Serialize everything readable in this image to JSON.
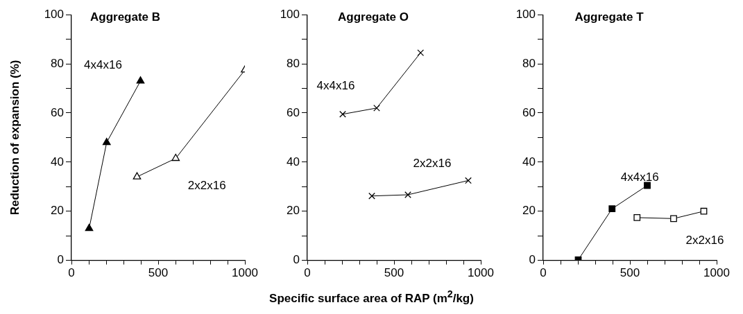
{
  "chart_data": [
    {
      "type": "line",
      "title": "Aggregate B",
      "ylabel": "Reduction of expansion (%)",
      "xlim": [
        0,
        1000
      ],
      "xticks": [
        0,
        {
          "value": 100,
          "label": null
        },
        {
          "value": 200,
          "label": null
        },
        {
          "value": 300,
          "label": null
        },
        {
          "value": 400,
          "label": null
        },
        500,
        {
          "value": 600,
          "label": null
        },
        {
          "value": 700,
          "label": null
        },
        {
          "value": 800,
          "label": null
        },
        {
          "value": 900,
          "label": null
        },
        1000
      ],
      "ylim": [
        0,
        100
      ],
      "yticks": [
        0,
        {
          "value": 10,
          "label": null
        },
        20,
        {
          "value": 30,
          "label": null
        },
        40,
        {
          "value": 50,
          "label": null
        },
        60,
        {
          "value": 70,
          "label": null
        },
        80,
        {
          "value": 90,
          "label": null
        },
        100
      ],
      "grid": false,
      "legend": false,
      "marker": "triangle",
      "line_style": "solid",
      "series": [
        {
          "name": "4x4x16",
          "color": "#000000",
          "x": [
            102,
            203,
            398
          ],
          "values": [
            13,
            48,
            73
          ]
        },
        {
          "name": "2x2x16",
          "color": "#000000",
          "x": [
            378,
            601,
            1000
          ],
          "values": [
            34,
            41.5,
            77.5
          ]
        }
      ]
    },
    {
      "type": "line",
      "title": "Aggregate O",
      "xlabel": "Specific surface area of RAP (m$^{2}$/kg)",
      "xlim": [
        0,
        1000
      ],
      "xticks": [
        0,
        {
          "value": 100,
          "label": null
        },
        {
          "value": 200,
          "label": null
        },
        {
          "value": 300,
          "label": null
        },
        {
          "value": 400,
          "label": null
        },
        500,
        {
          "value": 600,
          "label": null
        },
        {
          "value": 700,
          "label": null
        },
        {
          "value": 800,
          "label": null
        },
        {
          "value": 900,
          "label": null
        },
        1000
      ],
      "ylim": [
        0,
        100
      ],
      "yticks": [
        0,
        {
          "value": 10,
          "label": null
        },
        20,
        {
          "value": 30,
          "label": null
        },
        40,
        {
          "value": 50,
          "label": null
        },
        60,
        {
          "value": 70,
          "label": null
        },
        80,
        {
          "value": 90,
          "label": null
        },
        100
      ],
      "grid": false,
      "legend": false,
      "marker": "cross",
      "line_style": "solid",
      "series": [
        {
          "name": "4x4x16",
          "color": "#000000",
          "x": [
            204,
            400,
            653
          ],
          "values": [
            59.5,
            62,
            84.5
          ]
        },
        {
          "name": "2x2x16",
          "color": "#000000",
          "x": [
            372,
            580,
            928
          ],
          "values": [
            26.2,
            26.7,
            32.5
          ]
        }
      ]
    },
    {
      "type": "line",
      "title": "Aggregate T",
      "xlim": [
        0,
        1000
      ],
      "xticks": [
        0,
        {
          "value": 100,
          "label": null
        },
        {
          "value": 200,
          "label": null
        },
        {
          "value": 300,
          "label": null
        },
        {
          "value": 400,
          "label": null
        },
        500,
        {
          "value": 600,
          "label": null
        },
        {
          "value": 700,
          "label": null
        },
        {
          "value": 800,
          "label": null
        },
        {
          "value": 900,
          "label": null
        },
        1000
      ],
      "ylim": [
        0,
        100
      ],
      "yticks": [
        0,
        {
          "value": 10,
          "label": null
        },
        20,
        {
          "value": 30,
          "label": null
        },
        40,
        {
          "value": 50,
          "label": null
        },
        60,
        {
          "value": 70,
          "label": null
        },
        80,
        {
          "value": 90,
          "label": null
        },
        100
      ],
      "grid": false,
      "legend": false,
      "marker": "square",
      "line_style": "solid",
      "series": [
        {
          "name": "4x4x16",
          "color": "#000000",
          "x": [
            202,
            397,
            600
          ],
          "values": [
            0.2,
            21,
            30.5
          ]
        },
        {
          "name": "2x2x16",
          "color": "#000000",
          "x": [
            541,
            752,
            926
          ],
          "values": [
            17.4,
            17,
            20
          ]
        }
      ]
    }
  ]
}
